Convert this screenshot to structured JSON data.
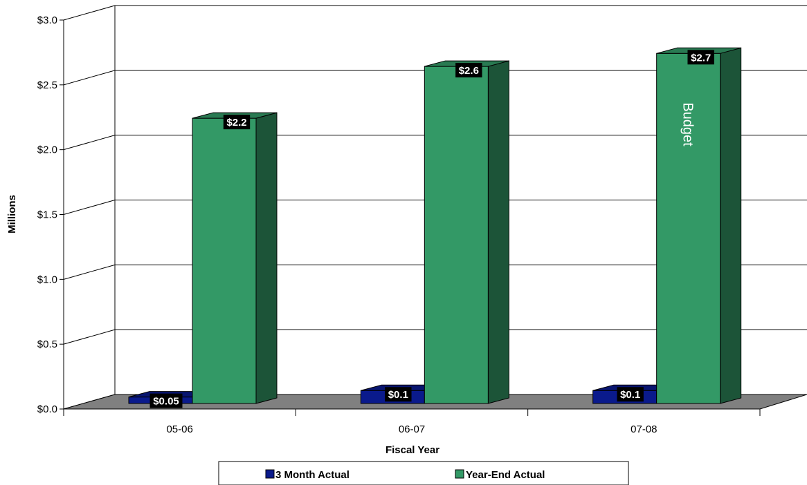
{
  "chart_data": {
    "type": "bar",
    "title": "",
    "xlabel": "Fiscal Year",
    "ylabel": "Millions",
    "categories": [
      "05-06",
      "06-07",
      "07-08"
    ],
    "series": [
      {
        "name": "3 Month Actual",
        "values": [
          0.05,
          0.1,
          0.1
        ],
        "labels": [
          "$0.05",
          "$0.1",
          "$0.1"
        ],
        "color": "#0a1a8c"
      },
      {
        "name": "Year-End Actual",
        "values": [
          2.2,
          2.6,
          2.7
        ],
        "labels": [
          "$2.2",
          "$2.6",
          "$2.7"
        ],
        "color": "#339966"
      }
    ],
    "ylim": [
      0,
      3
    ],
    "yticks": [
      0,
      0.5,
      1,
      1.5,
      2,
      2.5,
      3
    ],
    "ytick_labels": [
      "$0.0",
      "$0.5",
      "$1.0",
      "$1.5",
      "$2.0",
      "$2.5",
      "$3.0"
    ],
    "annotation": {
      "text": "Budget",
      "category": "07-08",
      "series": "Year-End Actual"
    },
    "grid": true,
    "legend": "bottom",
    "floor_color": "#808080"
  }
}
